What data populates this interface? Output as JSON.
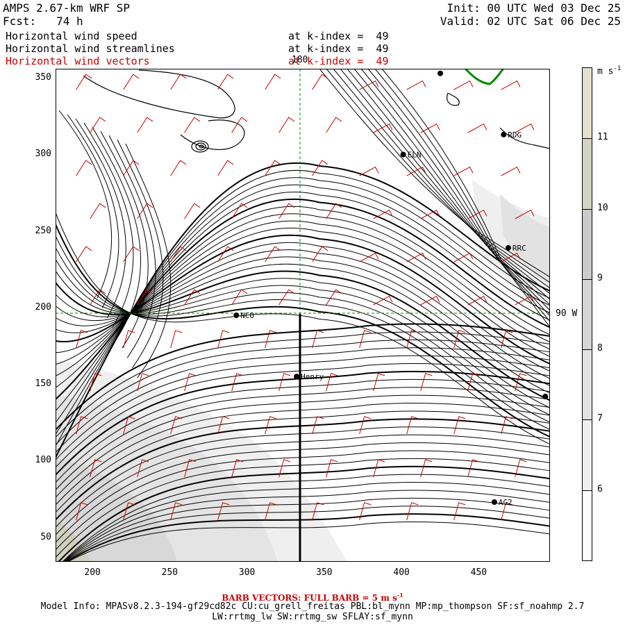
{
  "header": {
    "model": "AMPS 2.67-km WRF SP",
    "forecast": "Fcst:   74 h",
    "init": "Init: 00 UTC Wed 03 Dec 25",
    "valid": "Valid: 02 UTC Sat 06 Dec 25"
  },
  "layers": [
    {
      "name": "Horizontal wind speed",
      "level": "at k-index =  49",
      "color": "#000000"
    },
    {
      "name": "Horizontal wind streamlines",
      "level": "at k-index =  49",
      "color": "#000000"
    },
    {
      "name": "Horizontal wind vectors",
      "level": "at k-index =  49",
      "color": "#cc0000"
    }
  ],
  "axes": {
    "x_ticks": [
      "200",
      "250",
      "300",
      "350",
      "400",
      "450"
    ],
    "y_ticks": [
      "350",
      "300",
      "250",
      "200",
      "150",
      "100",
      "50"
    ],
    "x_range": [
      176,
      496
    ],
    "y_range": [
      34,
      356
    ]
  },
  "gridline_labels": {
    "meridian": "180",
    "parallel": "90 W"
  },
  "stations": [
    {
      "label": "RDG",
      "x": 466,
      "y": 313
    },
    {
      "label": "ELN",
      "x": 401,
      "y": 300
    },
    {
      "label": "RRC",
      "x": 469,
      "y": 239
    },
    {
      "label": "NCO",
      "x": 293,
      "y": 195
    },
    {
      "label": "Henry",
      "x": 332,
      "y": 155
    },
    {
      "label": "AG2",
      "x": 460,
      "y": 73
    },
    {
      "label": "",
      "x": 425,
      "y": 353
    },
    {
      "label": "",
      "x": 493,
      "y": 142
    }
  ],
  "colorbar": {
    "unit": "m s",
    "unit_exp": "-1",
    "labels": [
      "11",
      "10",
      "9",
      "8",
      "7",
      "6"
    ],
    "range": [
      5,
      12
    ]
  },
  "footer": {
    "barb_text": "BARB VECTORS:  FULL BARB = 5 m s",
    "barb_exp": "-1",
    "model_info": "Model Info: MPASv8.2.3-194-gf29cd82c CU:cu_grell_freitas PBL:bl_mynn MP:mp_thompson SF:sf_noahmp 2.7",
    "model_info2": "LW:rrtmg_lw SW:rrtmg_sw SFLAY:sf_mynn"
  }
}
